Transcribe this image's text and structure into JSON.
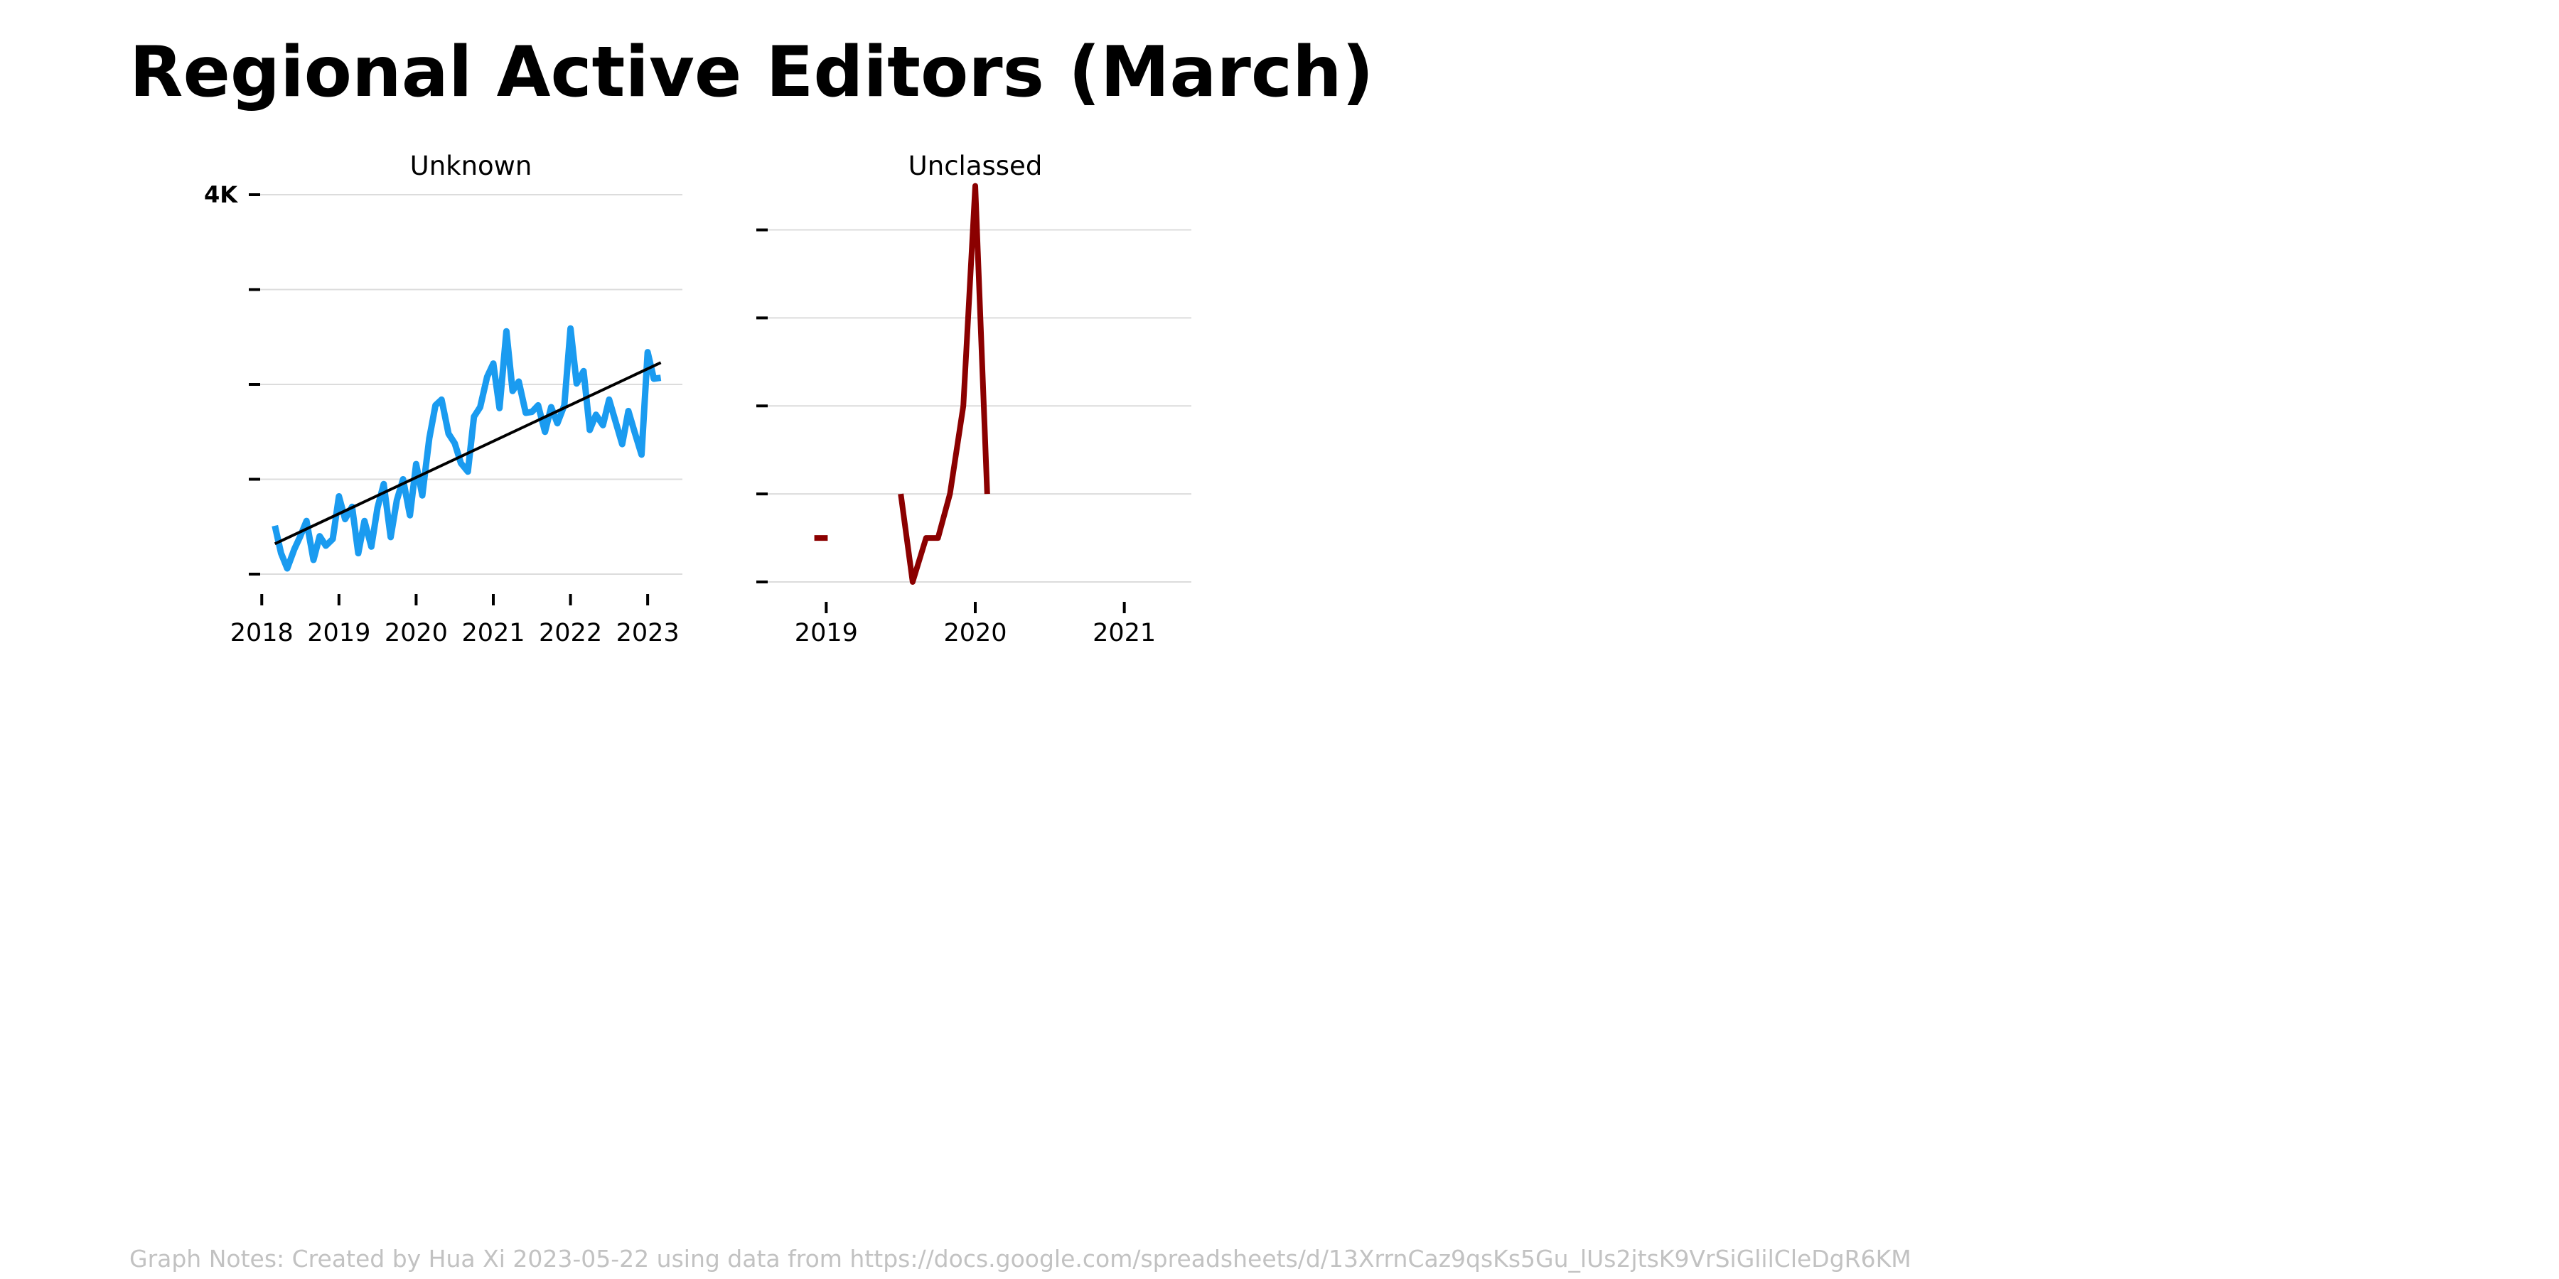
{
  "title": "Regional Active Editors (March)",
  "notes": "Graph Notes: Created by Hua Xi 2023-05-22 using data from https://docs.google.com/spreadsheets/d/13XrrnCaz9qsKs5Gu_lUs2jtsK9VrSiGlilCleDgR6KM",
  "colors": {
    "unknown": "#1a9bf0",
    "unclassed": "#8b0000",
    "trend": "#000000",
    "grid": "#dcdcdc",
    "notes": "#c2c2c2"
  },
  "chart_data": [
    {
      "type": "line",
      "title": "Unknown",
      "xlabel": "",
      "ylabel": "",
      "x_ticks": [
        2018,
        2019,
        2020,
        2021,
        2022,
        2023
      ],
      "y_ticks": [
        0,
        1000,
        2000,
        3000,
        4000
      ],
      "y_tick_labels": [
        "",
        "",
        "",
        "",
        "4K"
      ],
      "ylim": [
        0,
        4000
      ],
      "grid": true,
      "series": [
        {
          "color": "#1a9bf0",
          "points": [
            [
              2018.17,
              510
            ],
            [
              2018.25,
              220
            ],
            [
              2018.33,
              60
            ],
            [
              2018.42,
              260
            ],
            [
              2018.5,
              400
            ],
            [
              2018.58,
              560
            ],
            [
              2018.67,
              150
            ],
            [
              2018.75,
              400
            ],
            [
              2018.83,
              300
            ],
            [
              2018.92,
              370
            ],
            [
              2019.0,
              820
            ],
            [
              2019.08,
              580
            ],
            [
              2019.17,
              710
            ],
            [
              2019.25,
              220
            ],
            [
              2019.33,
              560
            ],
            [
              2019.42,
              290
            ],
            [
              2019.5,
              700
            ],
            [
              2019.58,
              950
            ],
            [
              2019.67,
              390
            ],
            [
              2019.75,
              780
            ],
            [
              2019.83,
              1000
            ],
            [
              2019.92,
              620
            ],
            [
              2020.0,
              1160
            ],
            [
              2020.08,
              830
            ],
            [
              2020.17,
              1430
            ],
            [
              2020.25,
              1780
            ],
            [
              2020.33,
              1840
            ],
            [
              2020.42,
              1480
            ],
            [
              2020.5,
              1380
            ],
            [
              2020.58,
              1170
            ],
            [
              2020.67,
              1080
            ],
            [
              2020.75,
              1660
            ],
            [
              2020.83,
              1760
            ],
            [
              2020.92,
              2080
            ],
            [
              2021.0,
              2220
            ],
            [
              2021.08,
              1750
            ],
            [
              2021.17,
              2560
            ],
            [
              2021.25,
              1930
            ],
            [
              2021.33,
              2030
            ],
            [
              2021.42,
              1700
            ],
            [
              2021.5,
              1710
            ],
            [
              2021.58,
              1780
            ],
            [
              2021.67,
              1500
            ],
            [
              2021.75,
              1760
            ],
            [
              2021.83,
              1590
            ],
            [
              2021.92,
              1780
            ],
            [
              2022.0,
              2590
            ],
            [
              2022.08,
              2010
            ],
            [
              2022.17,
              2140
            ],
            [
              2022.25,
              1520
            ],
            [
              2022.33,
              1680
            ],
            [
              2022.42,
              1570
            ],
            [
              2022.5,
              1840
            ],
            [
              2022.58,
              1620
            ],
            [
              2022.67,
              1370
            ],
            [
              2022.75,
              1720
            ],
            [
              2022.83,
              1500
            ],
            [
              2022.92,
              1260
            ],
            [
              2023.0,
              2340
            ],
            [
              2023.08,
              2060
            ],
            [
              2023.17,
              2070
            ]
          ]
        },
        {
          "color": "#000000",
          "points": [
            [
              2018.17,
              320
            ],
            [
              2023.17,
              2230
            ]
          ]
        }
      ]
    },
    {
      "type": "line",
      "title": "Unclassed",
      "xlabel": "",
      "ylabel": "",
      "x_ticks": [
        2019,
        2020,
        2021
      ],
      "y_ticks": [
        0,
        1,
        2,
        3,
        4
      ],
      "y_tick_labels": [
        "",
        "",
        "",
        "",
        ""
      ],
      "ylim": [
        0,
        4.4
      ],
      "grid": true,
      "series": [
        {
          "color": "#8b0000",
          "segments": [
            [
              [
                2018.92,
                0.5
              ],
              [
                2019.01,
                0.5
              ]
            ],
            [
              [
                2019.5,
                1.0
              ],
              [
                2019.58,
                0.0
              ],
              [
                2019.67,
                0.5
              ],
              [
                2019.75,
                0.5
              ],
              [
                2019.83,
                1.0
              ],
              [
                2019.92,
                2.0
              ],
              [
                2020.0,
                4.5
              ],
              [
                2020.08,
                1.0
              ]
            ]
          ]
        }
      ]
    }
  ]
}
